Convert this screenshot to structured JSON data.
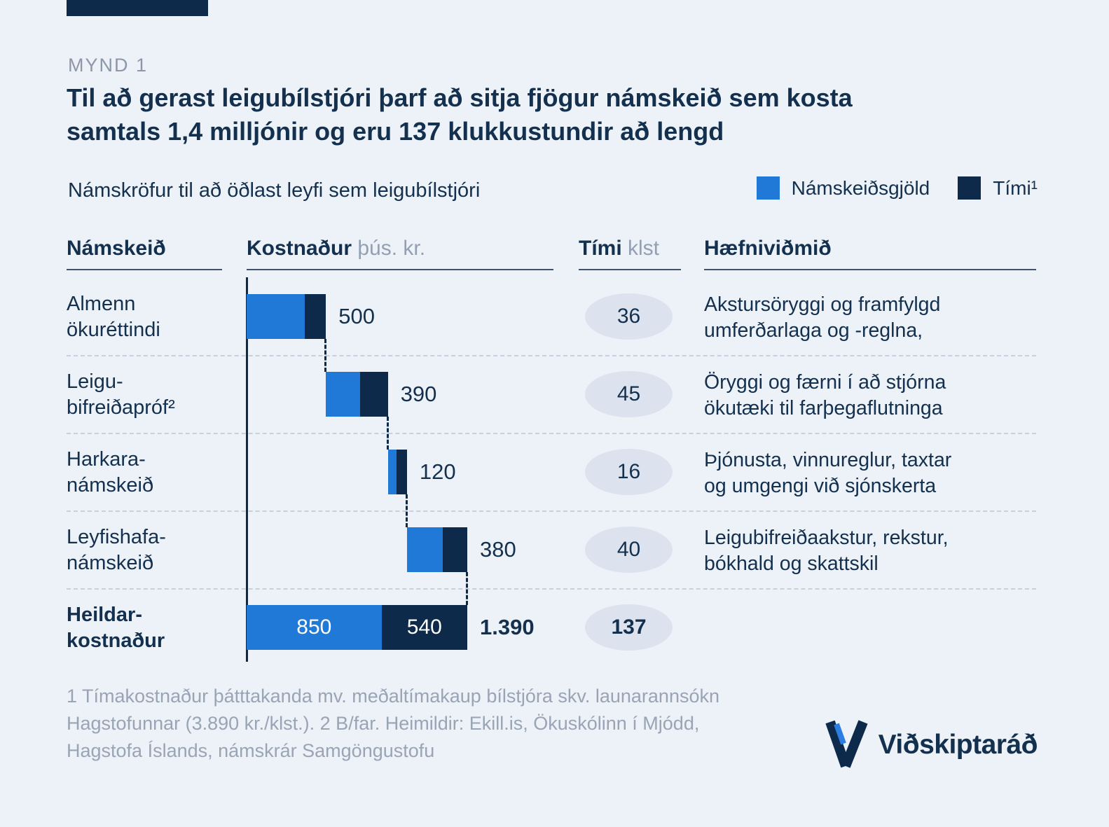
{
  "page": {
    "kicker": "MYND 1",
    "title": "Til að gerast leigubílstjóri þarf að sitja fjögur námskeið sem kosta\nsamtals 1,4 milljónir og eru 137 klukkustundir að lengd",
    "subtitle": "Námskröfur til að öðlast leyfi sem leigubílstjóri",
    "footnote": "1 Tímakostnaður þátttakanda mv. meðaltímakaup bílstjóra skv. launarannsókn\nHagstofunnar (3.890 kr./klst.). 2 B/far. Heimildir: Ekill.is, Ökuskólinn í Mjódd,\nHagstofa Íslands, námskrár Samgöngustofu",
    "brand": "Viðskiptaráð"
  },
  "legend": {
    "fees_label": "Námskeiðsgjöld",
    "time_label": "Tími¹"
  },
  "columns": {
    "course": "Námskeið",
    "cost": "Kostnaður",
    "cost_unit": " þús. kr.",
    "time": "Tími",
    "time_unit": " klst",
    "criteria": "Hæfniviðmið"
  },
  "colors": {
    "fees": "#2079d6",
    "time": "#0e2a4a",
    "background": "#edf1f8"
  },
  "chart_data": {
    "type": "bar",
    "variant": "waterfall-stacked",
    "title": "Námskröfur til að öðlast leyfi sem leigubílstjóri",
    "x_unit": "þús. kr.",
    "xlim": [
      0,
      1390
    ],
    "legend": [
      "Námskeiðsgjöld",
      "Tími¹"
    ],
    "legend_position": "top-right",
    "rows": [
      {
        "course": "Almenn\nökuréttindi",
        "fee_est": 365,
        "time_cost_est": 135,
        "total": 500,
        "total_label": "500",
        "hours": 36,
        "criteria": "Akstursöryggi og framfylgd\numferðarlaga og -reglna,"
      },
      {
        "course": "Leigu-\nbifreiðapróf²",
        "fee_est": 215,
        "time_cost_est": 175,
        "total": 390,
        "total_label": "390",
        "hours": 45,
        "criteria": "Öryggi og færni í að stjórna\nökutæki til farþegaflutninga"
      },
      {
        "course": "Harkara-\nnámskeið",
        "fee_est": 55,
        "time_cost_est": 65,
        "total": 120,
        "total_label": "120",
        "hours": 16,
        "criteria": "Þjónusta, vinnureglur, taxtar\nog umgengi við sjónskerta"
      },
      {
        "course": "Leyfishafa-\nnámskeið",
        "fee_est": 225,
        "time_cost_est": 155,
        "total": 380,
        "total_label": "380",
        "hours": 40,
        "criteria": "Leigubifreiðaakstur, rekstur,\nbókhald og skattskil"
      }
    ],
    "total_row": {
      "course": "Heildar-\nkostnaður",
      "fee": 850,
      "fee_label": "850",
      "time_cost": 540,
      "time_label": "540",
      "total": 1390,
      "total_label": "1.390",
      "hours": 137
    }
  }
}
